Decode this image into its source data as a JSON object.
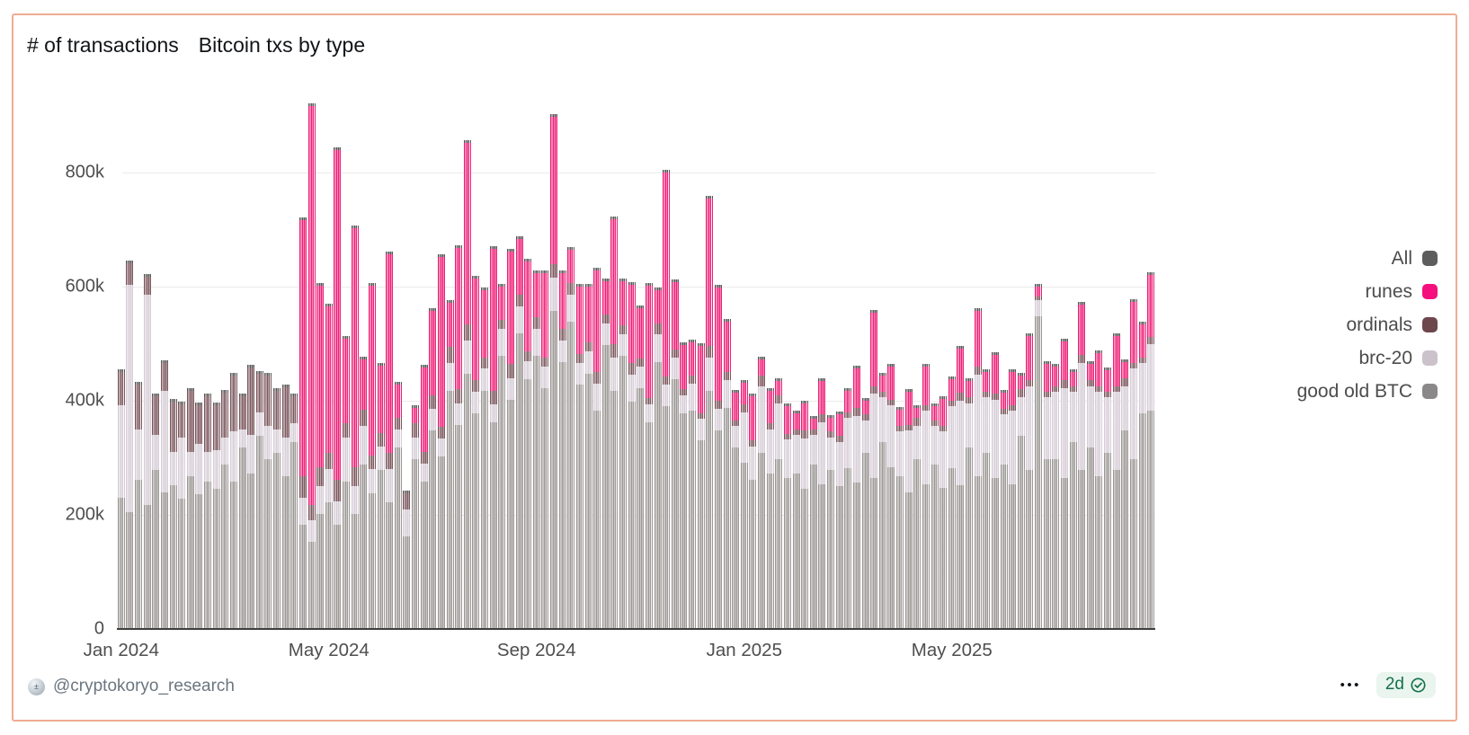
{
  "card": {
    "y_axis_title": "# of transactions",
    "chart_title": "Bitcoin txs by type"
  },
  "legend": {
    "items": [
      {
        "label": "All",
        "color": "#5d5d5d"
      },
      {
        "label": "runes",
        "color": "#f50f7e"
      },
      {
        "label": "ordinals",
        "color": "#6d474d"
      },
      {
        "label": "brc-20",
        "color": "#cbc2cb"
      },
      {
        "label": "good old BTC",
        "color": "#8b8889"
      }
    ]
  },
  "footer": {
    "handle": "@cryptokoryo_research",
    "more_label": "•••",
    "age_badge": {
      "text": "2d"
    }
  },
  "colors": {
    "card_border": "#efac93",
    "gridline": "#ebebeb",
    "baseline": "#3e3e3e",
    "axis_label": "#4e4e4e",
    "all_cap": "#585858",
    "badge_bg": "#e9f5ee",
    "badge_green": "#14714a"
  },
  "chart_data": {
    "type": "bar",
    "stacked": true,
    "title": "Bitcoin txs by type",
    "ylabel": "# of transactions",
    "unit": "thousands of transactions per day",
    "note": "Daily bars Jan 2024 - Aug 2025, estimated from gridlines at ~5-day buckets; 'All' equals the stack total and appears as a dark cap on each bar.",
    "x_range": [
      "Jan 2024",
      "Aug 2025"
    ],
    "points_per_month": 6,
    "ylim_k": [
      0,
      920
    ],
    "grid": true,
    "legend_position": "right",
    "y_ticks": [
      {
        "label": "0",
        "k": 0
      },
      {
        "label": "200k",
        "k": 200
      },
      {
        "label": "400k",
        "k": 400
      },
      {
        "label": "600k",
        "k": 600
      },
      {
        "label": "800k",
        "k": 800
      }
    ],
    "x_ticks": [
      {
        "label": "Jan 2024",
        "index": 0
      },
      {
        "label": "May 2024",
        "index": 24
      },
      {
        "label": "Sep 2024",
        "index": 48
      },
      {
        "label": "Jan 2025",
        "index": 72
      },
      {
        "label": "May 2025",
        "index": 96
      }
    ],
    "series": [
      {
        "name": "good old BTC",
        "color": "#9c9896",
        "values": [
          230,
          205,
          262,
          218,
          278,
          240,
          252,
          228,
          268,
          236,
          258,
          246,
          288,
          258,
          318,
          272,
          338,
          298,
          308,
          268,
          328,
          182,
          152,
          202,
          222,
          182,
          258,
          202,
          288,
          238,
          278,
          222,
          318,
          162,
          298,
          258,
          348,
          302,
          418,
          358,
          448,
          378,
          418,
          362,
          478,
          402,
          518,
          438,
          478,
          422,
          558,
          468,
          538,
          428,
          448,
          382,
          498,
          418,
          478,
          398,
          422,
          362,
          468,
          390,
          438,
          378,
          382,
          330,
          418,
          348,
          388,
          318,
          292,
          262,
          308,
          272,
          298,
          264,
          272,
          246,
          288,
          254,
          278,
          250,
          282,
          256,
          308,
          264,
          328,
          284,
          268,
          240,
          298,
          254,
          288,
          248,
          282,
          252,
          318,
          268,
          308,
          264,
          288,
          254,
          338,
          278,
          548,
          298,
          298,
          264,
          328,
          278,
          318,
          268,
          308,
          278,
          348,
          298,
          378,
          382
        ]
      },
      {
        "name": "brc-20",
        "color": "#d7ced7",
        "values": [
          162,
          398,
          88,
          368,
          62,
          178,
          58,
          108,
          42,
          88,
          52,
          68,
          48,
          88,
          32,
          68,
          42,
          58,
          42,
          68,
          32,
          48,
          38,
          48,
          58,
          42,
          78,
          48,
          68,
          42,
          42,
          58,
          32,
          48,
          38,
          32,
          38,
          32,
          48,
          38,
          58,
          38,
          38,
          32,
          48,
          38,
          48,
          32,
          48,
          38,
          58,
          38,
          48,
          38,
          38,
          48,
          38,
          58,
          38,
          48,
          38,
          32,
          48,
          38,
          38,
          32,
          48,
          38,
          58,
          38,
          48,
          38,
          88,
          58,
          118,
          78,
          98,
          68,
          68,
          88,
          52,
          108,
          58,
          78,
          88,
          118,
          58,
          148,
          78,
          108,
          78,
          108,
          58,
          128,
          68,
          98,
          108,
          148,
          78,
          178,
          98,
          138,
          88,
          128,
          68,
          148,
          28,
          108,
          118,
          158,
          88,
          188,
          108,
          148,
          98,
          138,
          78,
          158,
          88,
          118
        ]
      },
      {
        "name": "ordinals",
        "color": "#7b575d",
        "values": [
          58,
          38,
          78,
          32,
          68,
          48,
          88,
          58,
          108,
          68,
          98,
          78,
          78,
          98,
          58,
          118,
          68,
          88,
          68,
          88,
          48,
          38,
          28,
          34,
          28,
          38,
          24,
          34,
          28,
          24,
          24,
          28,
          20,
          28,
          24,
          20,
          24,
          20,
          28,
          24,
          28,
          20,
          20,
          24,
          16,
          24,
          20,
          16,
          20,
          16,
          24,
          20,
          20,
          16,
          16,
          20,
          16,
          24,
          16,
          20,
          14,
          10,
          20,
          14,
          14,
          10,
          14,
          10,
          20,
          14,
          14,
          10,
          14,
          10,
          18,
          10,
          14,
          10,
          10,
          14,
          10,
          14,
          10,
          10,
          10,
          14,
          10,
          14,
          10,
          10,
          10,
          10,
          14,
          10,
          10,
          10,
          10,
          14,
          10,
          14,
          10,
          10,
          10,
          10,
          14,
          10,
          6,
          10,
          10,
          14,
          10,
          14,
          10,
          10,
          10,
          10,
          14,
          10,
          10,
          12
        ]
      },
      {
        "name": "runes",
        "color": "#ee2078",
        "values": [
          0,
          0,
          0,
          0,
          0,
          0,
          0,
          0,
          0,
          0,
          0,
          0,
          0,
          0,
          0,
          0,
          0,
          0,
          0,
          0,
          0,
          448,
          698,
          318,
          258,
          578,
          148,
          418,
          88,
          298,
          118,
          348,
          58,
          0,
          28,
          148,
          148,
          298,
          78,
          248,
          318,
          178,
          118,
          248,
          58,
          198,
          98,
          158,
          78,
          148,
          258,
          98,
          58,
          118,
          98,
          178,
          58,
          218,
          78,
          138,
          88,
          198,
          58,
          358,
          118,
          78,
          58,
          118,
          258,
          198,
          88,
          48,
          38,
          78,
          28,
          58,
          24,
          48,
          28,
          48,
          18,
          58,
          24,
          38,
          38,
          68,
          24,
          128,
          28,
          58,
          28,
          58,
          18,
          68,
          24,
          48,
          38,
          78,
          28,
          98,
          34,
          68,
          28,
          58,
          24,
          78,
          18,
          48,
          34,
          68,
          24,
          88,
          28,
          58,
          38,
          88,
          28,
          108,
          58,
          108
        ]
      }
    ]
  }
}
